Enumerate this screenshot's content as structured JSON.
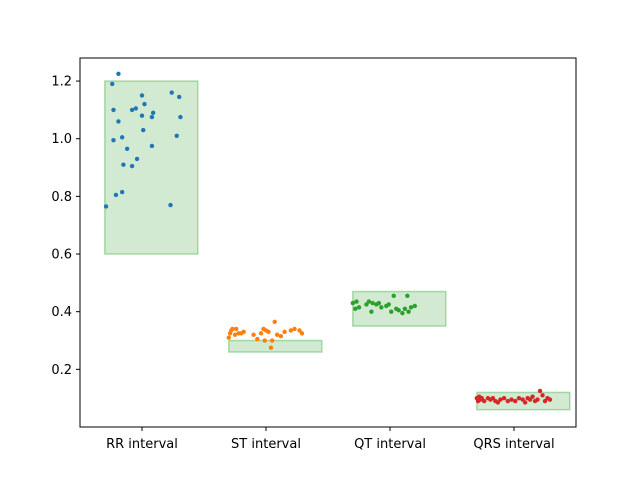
{
  "chart_data": {
    "type": "scatter",
    "title": "",
    "xlabel": "",
    "ylabel": "",
    "ylim": [
      0.0,
      1.28
    ],
    "yticks": [
      0.2,
      0.4,
      0.6,
      0.8,
      1.0,
      1.2
    ],
    "ytick_labels": [
      "0.2",
      "0.4",
      "0.6",
      "0.8",
      "1.0",
      "1.2"
    ],
    "grid": false,
    "categories": [
      "RR interval",
      "ST interval",
      "QT interval",
      "QRS interval"
    ],
    "normal_ranges": [
      {
        "category": "RR interval",
        "low": 0.6,
        "high": 1.2
      },
      {
        "category": "ST interval",
        "low": 0.26,
        "high": 0.3
      },
      {
        "category": "QT interval",
        "low": 0.35,
        "high": 0.47
      },
      {
        "category": "QRS interval",
        "low": 0.06,
        "high": 0.12
      }
    ],
    "range_color": "#2ca02c",
    "series": [
      {
        "category": "RR interval",
        "color": "#1f77b4",
        "points": [
          {
            "x": -0.29,
            "y": 0.765
          },
          {
            "x": -0.24,
            "y": 1.19
          },
          {
            "x": -0.23,
            "y": 1.1
          },
          {
            "x": -0.23,
            "y": 0.995
          },
          {
            "x": -0.21,
            "y": 0.805
          },
          {
            "x": -0.19,
            "y": 1.225
          },
          {
            "x": -0.19,
            "y": 1.06
          },
          {
            "x": -0.16,
            "y": 0.815
          },
          {
            "x": -0.16,
            "y": 1.005
          },
          {
            "x": -0.15,
            "y": 0.91
          },
          {
            "x": -0.12,
            "y": 0.965
          },
          {
            "x": -0.08,
            "y": 0.905
          },
          {
            "x": -0.08,
            "y": 1.1
          },
          {
            "x": -0.05,
            "y": 1.105
          },
          {
            "x": -0.04,
            "y": 0.93
          },
          {
            "x": 0.0,
            "y": 1.08
          },
          {
            "x": 0.0,
            "y": 1.15
          },
          {
            "x": 0.01,
            "y": 1.03
          },
          {
            "x": 0.02,
            "y": 1.12
          },
          {
            "x": 0.08,
            "y": 1.075
          },
          {
            "x": 0.08,
            "y": 0.975
          },
          {
            "x": 0.09,
            "y": 1.09
          },
          {
            "x": 0.23,
            "y": 0.77
          },
          {
            "x": 0.24,
            "y": 1.16
          },
          {
            "x": 0.28,
            "y": 1.01
          },
          {
            "x": 0.3,
            "y": 1.145
          },
          {
            "x": 0.31,
            "y": 1.075
          }
        ]
      },
      {
        "category": "ST interval",
        "color": "#ff7f0e",
        "points": [
          {
            "x": -0.3,
            "y": 0.31
          },
          {
            "x": -0.29,
            "y": 0.325
          },
          {
            "x": -0.28,
            "y": 0.335
          },
          {
            "x": -0.27,
            "y": 0.34
          },
          {
            "x": -0.25,
            "y": 0.32
          },
          {
            "x": -0.24,
            "y": 0.34
          },
          {
            "x": -0.22,
            "y": 0.325
          },
          {
            "x": -0.2,
            "y": 0.325
          },
          {
            "x": -0.18,
            "y": 0.33
          },
          {
            "x": -0.1,
            "y": 0.32
          },
          {
            "x": -0.07,
            "y": 0.305
          },
          {
            "x": -0.04,
            "y": 0.325
          },
          {
            "x": -0.02,
            "y": 0.34
          },
          {
            "x": -0.01,
            "y": 0.3
          },
          {
            "x": 0.0,
            "y": 0.335
          },
          {
            "x": 0.02,
            "y": 0.33
          },
          {
            "x": 0.04,
            "y": 0.275
          },
          {
            "x": 0.05,
            "y": 0.3
          },
          {
            "x": 0.07,
            "y": 0.365
          },
          {
            "x": 0.09,
            "y": 0.32
          },
          {
            "x": 0.12,
            "y": 0.315
          },
          {
            "x": 0.15,
            "y": 0.33
          },
          {
            "x": 0.2,
            "y": 0.335
          },
          {
            "x": 0.23,
            "y": 0.34
          },
          {
            "x": 0.27,
            "y": 0.335
          },
          {
            "x": 0.29,
            "y": 0.325
          }
        ]
      },
      {
        "category": "QT interval",
        "color": "#2ca02c",
        "points": [
          {
            "x": -0.3,
            "y": 0.43
          },
          {
            "x": -0.28,
            "y": 0.41
          },
          {
            "x": -0.27,
            "y": 0.435
          },
          {
            "x": -0.25,
            "y": 0.415
          },
          {
            "x": -0.19,
            "y": 0.425
          },
          {
            "x": -0.17,
            "y": 0.435
          },
          {
            "x": -0.15,
            "y": 0.4
          },
          {
            "x": -0.14,
            "y": 0.43
          },
          {
            "x": -0.11,
            "y": 0.425
          },
          {
            "x": -0.09,
            "y": 0.43
          },
          {
            "x": -0.07,
            "y": 0.415
          },
          {
            "x": -0.03,
            "y": 0.42
          },
          {
            "x": -0.01,
            "y": 0.425
          },
          {
            "x": 0.01,
            "y": 0.4
          },
          {
            "x": 0.03,
            "y": 0.455
          },
          {
            "x": 0.05,
            "y": 0.41
          },
          {
            "x": 0.07,
            "y": 0.405
          },
          {
            "x": 0.1,
            "y": 0.395
          },
          {
            "x": 0.12,
            "y": 0.41
          },
          {
            "x": 0.14,
            "y": 0.455
          },
          {
            "x": 0.15,
            "y": 0.4
          },
          {
            "x": 0.17,
            "y": 0.415
          },
          {
            "x": 0.2,
            "y": 0.42
          }
        ]
      },
      {
        "category": "QRS interval",
        "color": "#d62728",
        "points": [
          {
            "x": -0.3,
            "y": 0.1
          },
          {
            "x": -0.29,
            "y": 0.09
          },
          {
            "x": -0.28,
            "y": 0.105
          },
          {
            "x": -0.27,
            "y": 0.095
          },
          {
            "x": -0.26,
            "y": 0.1
          },
          {
            "x": -0.24,
            "y": 0.09
          },
          {
            "x": -0.21,
            "y": 0.1
          },
          {
            "x": -0.19,
            "y": 0.095
          },
          {
            "x": -0.17,
            "y": 0.1
          },
          {
            "x": -0.15,
            "y": 0.09
          },
          {
            "x": -0.13,
            "y": 0.085
          },
          {
            "x": -0.11,
            "y": 0.095
          },
          {
            "x": -0.08,
            "y": 0.1
          },
          {
            "x": -0.05,
            "y": 0.09
          },
          {
            "x": -0.02,
            "y": 0.095
          },
          {
            "x": 0.01,
            "y": 0.09
          },
          {
            "x": 0.04,
            "y": 0.1
          },
          {
            "x": 0.07,
            "y": 0.095
          },
          {
            "x": 0.09,
            "y": 0.085
          },
          {
            "x": 0.11,
            "y": 0.1
          },
          {
            "x": 0.13,
            "y": 0.095
          },
          {
            "x": 0.15,
            "y": 0.105
          },
          {
            "x": 0.17,
            "y": 0.09
          },
          {
            "x": 0.19,
            "y": 0.095
          },
          {
            "x": 0.21,
            "y": 0.125
          },
          {
            "x": 0.23,
            "y": 0.11
          },
          {
            "x": 0.25,
            "y": 0.09
          },
          {
            "x": 0.27,
            "y": 0.1
          },
          {
            "x": 0.29,
            "y": 0.095
          }
        ]
      }
    ]
  }
}
